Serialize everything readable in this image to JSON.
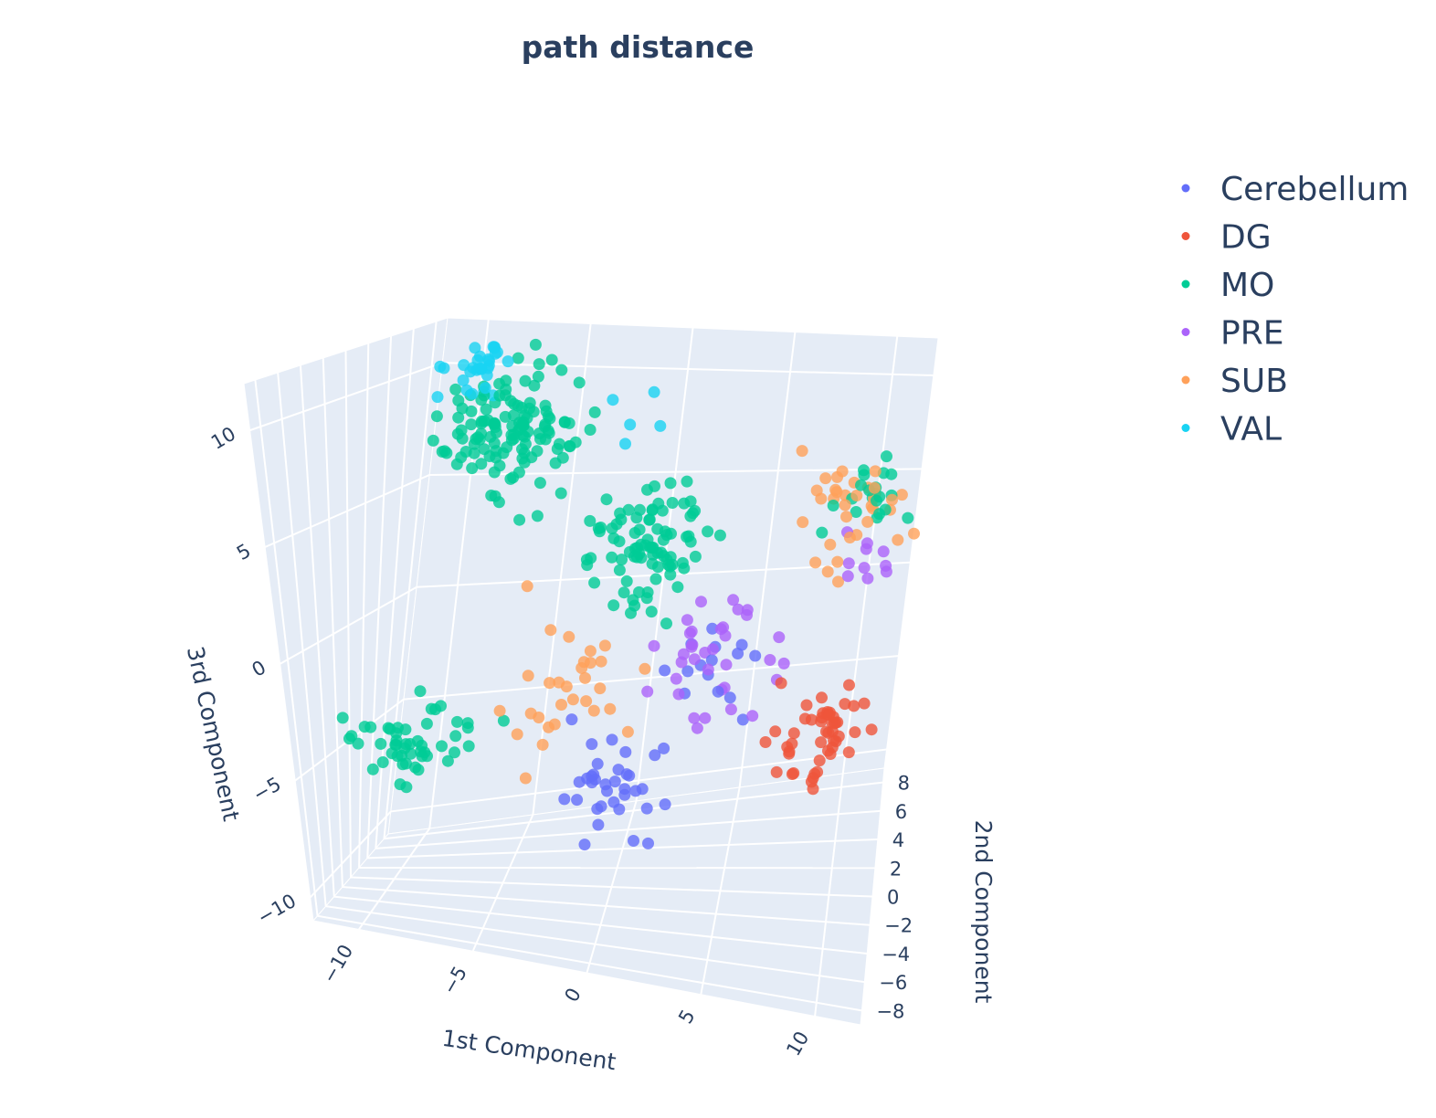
{
  "chart_data": {
    "type": "scatter3d",
    "title": "path distance",
    "axes": {
      "x": {
        "title": "1st Component",
        "ticks": [
          -10,
          -5,
          0,
          5,
          10
        ],
        "tick_labels": [
          "−10",
          "−5",
          "0",
          "5",
          "10"
        ],
        "range": [
          -12,
          12
        ]
      },
      "y": {
        "title": "2nd Component",
        "ticks": [
          -8,
          -6,
          -4,
          -2,
          0,
          2,
          4,
          6,
          8
        ],
        "tick_labels": [
          "−8",
          "−6",
          "−4",
          "−2",
          "0",
          "2",
          "4",
          "6",
          "8"
        ],
        "range": [
          -9,
          9
        ]
      },
      "z": {
        "title": "3rd Component",
        "ticks": [
          -10,
          -5,
          0,
          5,
          10
        ],
        "tick_labels": [
          "−10",
          "−5",
          "0",
          "5",
          "10"
        ],
        "range": [
          -11,
          12
        ]
      }
    },
    "background": "#e5ecf6",
    "grid": true,
    "legend_position": "top-right",
    "series": [
      {
        "name": "Cerebellum",
        "color": "#636efa"
      },
      {
        "name": "DG",
        "color": "#ef553b"
      },
      {
        "name": "MO",
        "color": "#00cc96"
      },
      {
        "name": "PRE",
        "color": "#ab63fa"
      },
      {
        "name": "SUB",
        "color": "#ffa15a"
      },
      {
        "name": "VAL",
        "color": "#19d3f3"
      }
    ]
  }
}
